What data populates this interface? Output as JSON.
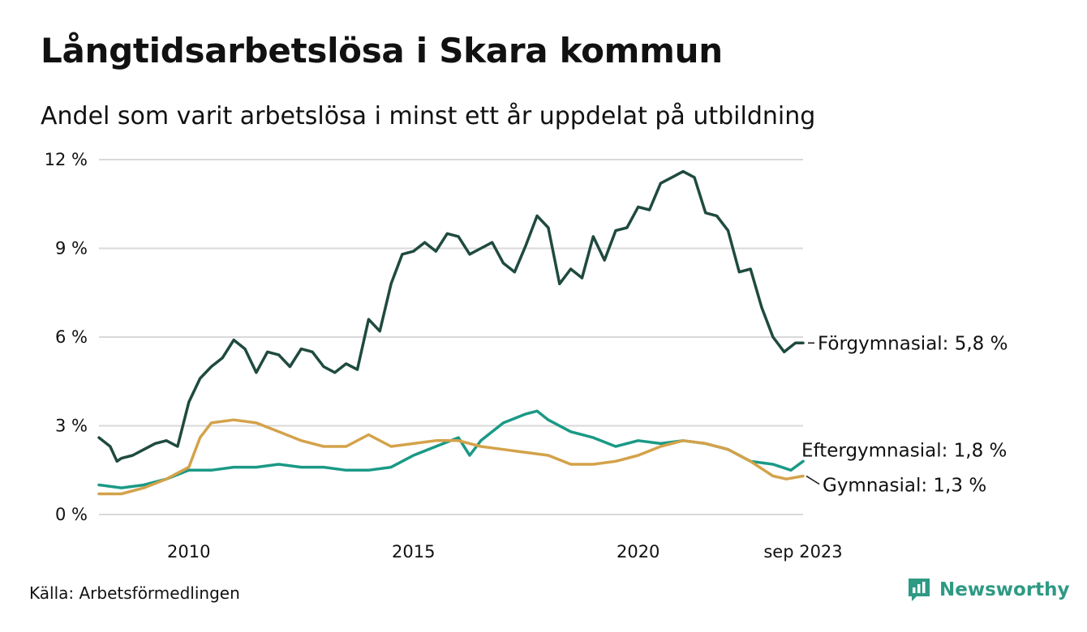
{
  "header": {
    "title": "Långtidsarbetslösa i Skara kommun",
    "subtitle": "Andel som varit arbetslösa i minst ett år uppdelat på utbildning"
  },
  "footer": {
    "source": "Källa: Arbetsförmedlingen",
    "brand": "Newsworthy"
  },
  "colors": {
    "forgymnasial": "#1f4a40",
    "eftergymnasial": "#1a9986",
    "gymnasial": "#d4a24a",
    "grid": "#d9d9d9",
    "brand": "#2e9a84"
  },
  "chart_data": {
    "type": "line",
    "title": "Långtidsarbetslösa i Skara kommun",
    "xlabel": "",
    "ylabel": "",
    "ylim": [
      0,
      12
    ],
    "xlim": [
      2008.0,
      2023.67
    ],
    "y_ticks": [
      {
        "value": 0,
        "label": "0 %"
      },
      {
        "value": 3,
        "label": "3 %"
      },
      {
        "value": 6,
        "label": "6 %"
      },
      {
        "value": 9,
        "label": "9 %"
      },
      {
        "value": 12,
        "label": "12 %"
      }
    ],
    "x_ticks": [
      {
        "value": 2010,
        "label": "2010"
      },
      {
        "value": 2015,
        "label": "2015"
      },
      {
        "value": 2020,
        "label": "2020"
      },
      {
        "value": 2023.67,
        "label": "sep 2023"
      }
    ],
    "series": [
      {
        "name": "Förgymnasial",
        "label": "Förgymnasial: 5,8 %",
        "color": "#1f4a40",
        "x": [
          2008.0,
          2008.25,
          2008.4,
          2008.5,
          2008.75,
          2009.0,
          2009.25,
          2009.5,
          2009.75,
          2010.0,
          2010.25,
          2010.5,
          2010.75,
          2011.0,
          2011.25,
          2011.5,
          2011.75,
          2012.0,
          2012.25,
          2012.5,
          2012.75,
          2013.0,
          2013.25,
          2013.5,
          2013.75,
          2014.0,
          2014.25,
          2014.5,
          2014.75,
          2015.0,
          2015.25,
          2015.5,
          2015.75,
          2016.0,
          2016.25,
          2016.5,
          2016.75,
          2017.0,
          2017.25,
          2017.5,
          2017.75,
          2018.0,
          2018.25,
          2018.5,
          2018.75,
          2019.0,
          2019.25,
          2019.5,
          2019.75,
          2020.0,
          2020.25,
          2020.5,
          2020.75,
          2021.0,
          2021.25,
          2021.5,
          2021.75,
          2022.0,
          2022.25,
          2022.5,
          2022.75,
          2023.0,
          2023.25,
          2023.5,
          2023.67
        ],
        "values": [
          2.6,
          2.3,
          1.8,
          1.9,
          2.0,
          2.2,
          2.4,
          2.5,
          2.3,
          3.8,
          4.6,
          5.0,
          5.3,
          5.9,
          5.6,
          4.8,
          5.5,
          5.4,
          5.0,
          5.6,
          5.5,
          5.0,
          4.8,
          5.1,
          4.9,
          6.6,
          6.2,
          7.8,
          8.8,
          8.9,
          9.2,
          8.9,
          9.5,
          9.4,
          8.8,
          9.0,
          9.2,
          8.5,
          8.2,
          9.1,
          10.1,
          9.7,
          7.8,
          8.3,
          8.0,
          9.4,
          8.6,
          9.6,
          9.7,
          10.4,
          10.3,
          11.2,
          11.4,
          11.6,
          11.4,
          10.2,
          10.1,
          9.6,
          8.2,
          8.3,
          7.0,
          6.0,
          5.5,
          5.8,
          5.8
        ]
      },
      {
        "name": "Eftergymnasial",
        "label": "Eftergymnasial: 1,8 %",
        "color": "#1a9986",
        "x": [
          2008.0,
          2008.5,
          2009.0,
          2009.5,
          2010.0,
          2010.5,
          2011.0,
          2011.5,
          2012.0,
          2012.5,
          2013.0,
          2013.5,
          2014.0,
          2014.5,
          2015.0,
          2015.5,
          2016.0,
          2016.25,
          2016.5,
          2017.0,
          2017.5,
          2017.75,
          2018.0,
          2018.5,
          2019.0,
          2019.5,
          2020.0,
          2020.5,
          2021.0,
          2021.5,
          2022.0,
          2022.5,
          2023.0,
          2023.4,
          2023.67
        ],
        "values": [
          1.0,
          0.9,
          1.0,
          1.2,
          1.5,
          1.5,
          1.6,
          1.6,
          1.7,
          1.6,
          1.6,
          1.5,
          1.5,
          1.6,
          2.0,
          2.3,
          2.6,
          2.0,
          2.5,
          3.1,
          3.4,
          3.5,
          3.2,
          2.8,
          2.6,
          2.3,
          2.5,
          2.4,
          2.5,
          2.4,
          2.2,
          1.8,
          1.7,
          1.5,
          1.8
        ]
      },
      {
        "name": "Gymnasial",
        "label": "Gymnasial: 1,3 %",
        "color": "#d4a24a",
        "x": [
          2008.0,
          2008.5,
          2009.0,
          2009.5,
          2010.0,
          2010.25,
          2010.5,
          2011.0,
          2011.5,
          2012.0,
          2012.5,
          2013.0,
          2013.5,
          2014.0,
          2014.5,
          2015.0,
          2015.5,
          2016.0,
          2016.5,
          2017.0,
          2017.5,
          2018.0,
          2018.5,
          2019.0,
          2019.5,
          2020.0,
          2020.5,
          2021.0,
          2021.5,
          2022.0,
          2022.5,
          2023.0,
          2023.3,
          2023.67
        ],
        "values": [
          0.7,
          0.7,
          0.9,
          1.2,
          1.6,
          2.6,
          3.1,
          3.2,
          3.1,
          2.8,
          2.5,
          2.3,
          2.3,
          2.7,
          2.3,
          2.4,
          2.5,
          2.5,
          2.3,
          2.2,
          2.1,
          2.0,
          1.7,
          1.7,
          1.8,
          2.0,
          2.3,
          2.5,
          2.4,
          2.2,
          1.8,
          1.3,
          1.2,
          1.3
        ]
      }
    ]
  }
}
